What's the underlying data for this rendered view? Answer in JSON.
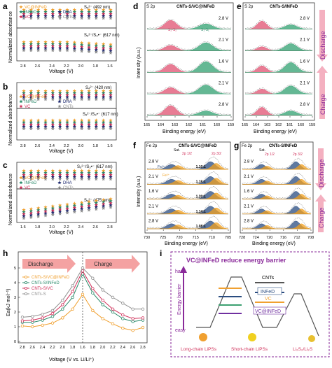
{
  "panel_labels": {
    "a": "a",
    "b": "b",
    "c": "c",
    "d": "d",
    "e": "e",
    "f": "f",
    "g": "g",
    "h": "h",
    "i": "i"
  },
  "colors": {
    "vc_infed": "#f0a030",
    "infed": "#2a8a6a",
    "vc": "#d0305a",
    "dha": "#1e2a70",
    "cnts": "#909090",
    "red_fill": "#e05070",
    "green_fill": "#30a070",
    "blue_fill": "#2a4c80",
    "orange_fill": "#f0a020",
    "arrow_pink": "#f4a2a2",
    "purple": "#8a2a9a"
  },
  "legend_series": [
    "VC@INFeD",
    "INFeD",
    "VC",
    "DHA",
    "CNTs"
  ],
  "panel_a": {
    "ylabel": "Normalized absorbance",
    "xlabel": "Voltage (V)",
    "top_label": "S₆²⁻ (492 nm)",
    "bottom_label": "S₆²⁻/S₃•⁻ (617 nm)",
    "xticks": [
      "2.8",
      "2.6",
      "2.4",
      "2.2",
      "2.0",
      "1.8",
      "1.6"
    ]
  },
  "panel_b": {
    "ylabel": "Normalized absorbance",
    "xlabel": "Voltage (V)",
    "top_label": "S₄²⁻ (420 nm)",
    "bottom_label": "S₆²⁻/S₃•⁻ (617 nm)",
    "xticks": [
      "2.8",
      "2.6",
      "2.4",
      "2.2",
      "2.0",
      "1.8",
      "1.6"
    ]
  },
  "panel_c": {
    "ylabel": "Normalized absorbance",
    "xlabel": "Voltage (V)",
    "top_label": "S₆²⁻/S₃•⁻ (617 nm)",
    "bottom_label": "S₆²⁻ (475 nm)",
    "xticks": [
      "1.6",
      "1.8",
      "2.0",
      "2.2",
      "2.4",
      "2.6",
      "2.8"
    ]
  },
  "panel_d": {
    "corner": "S 2p",
    "title": "CNTs-S/VC@INFeD",
    "xlabel": "Binding energy (eV)",
    "ylabel": "Intensity (a.u.)",
    "xticks": [
      "165",
      "164",
      "163",
      "162",
      "161",
      "160",
      "159"
    ],
    "voltages": [
      "2.8 V",
      "2.1 V",
      "1.6 V",
      "2.1 V",
      "2.8 V"
    ],
    "peak1": "S₂-S₂",
    "peak2": "S₁-S₁"
  },
  "panel_e": {
    "corner": "S 2p",
    "title": "CNTs-S/INFeD",
    "xlabel": "Binding energy (eV)",
    "xticks": [
      "165",
      "164",
      "163",
      "162",
      "161",
      "160",
      "159"
    ],
    "voltages": [
      "2.8 V",
      "2.1 V",
      "1.6 V",
      "2.1 V",
      "2.8 V"
    ],
    "discharge": "Discharge",
    "charge": "Charge"
  },
  "panel_f": {
    "corner": "Fe 2p",
    "title": "CNTs-S/VC@INFeD",
    "xlabel": "Binding energy (eV)",
    "ylabel": "Intensity (a.u.)",
    "xticks": [
      "730",
      "725",
      "720",
      "715",
      "710",
      "705"
    ],
    "voltages": [
      "2.8 V",
      "2.1 V",
      "1.6 V",
      "2.1 V",
      "2.8 V"
    ],
    "sat": "Sat.",
    "p12": "2p 1/2",
    "p32": "2p 3/2",
    "fe3": "Fe³⁺",
    "fe2": "Fe²⁺",
    "ratios": [
      "1.10",
      "1.15",
      "1.20",
      "1.14",
      "1.08"
    ]
  },
  "panel_g": {
    "corner": "Fe 2p",
    "title": "CNTs-S/INFeD",
    "xlabel": "Binding energy (eV)",
    "xticks": [
      "728",
      "724",
      "720",
      "716",
      "712",
      "708"
    ],
    "voltages": [
      "2.8 V",
      "2.1 V",
      "1.6 V",
      "2.1 V",
      "2.8 V"
    ],
    "sat": "Sat.",
    "p12": "2p 1/2",
    "p32": "2p 3/2",
    "discharge": "Discharge",
    "charge": "Charge"
  },
  "panel_h": {
    "ylabel": "Ea(kJ mol⁻¹)",
    "xlabel": "Voltage (V vs. Li/Li⁺)",
    "discharge": "Discharge",
    "charge": "Charge",
    "xticks": [
      "2.8",
      "2.6",
      "2.4",
      "2.2",
      "2.0",
      "1.8",
      "1.6",
      "1.8",
      "2.0",
      "2.2",
      "2.4",
      "2.6",
      "2.8"
    ],
    "yticks": [
      "0",
      "1",
      "2",
      "3",
      "4",
      "5"
    ],
    "legend": [
      "CNTs-S/VC@INFeD",
      "CNTs-S/INFeD",
      "CNTs-S/VC",
      "CNTs-S"
    ]
  },
  "chart_data": {
    "type": "line",
    "xlabel": "Voltage (V vs. Li/Li⁺)",
    "ylabel": "Ea(kJ mol⁻¹)",
    "categories": [
      "2.8",
      "2.6",
      "2.4",
      "2.2",
      "2.0",
      "1.8",
      "1.6",
      "1.8",
      "2.0",
      "2.2",
      "2.4",
      "2.6",
      "2.8"
    ],
    "ylim": [
      0,
      6
    ],
    "series": [
      {
        "name": "CNTs-S/VC@INFeD",
        "values": [
          1.05,
          1.0,
          1.1,
          1.25,
          1.6,
          2.2,
          3.2,
          2.1,
          1.55,
          1.2,
          0.9,
          0.75,
          0.95
        ]
      },
      {
        "name": "CNTs-S/INFeD",
        "values": [
          1.3,
          1.3,
          1.45,
          1.7,
          2.2,
          3.0,
          4.6,
          3.3,
          2.5,
          2.0,
          1.55,
          1.35,
          1.45
        ]
      },
      {
        "name": "CNTs-S/VC",
        "values": [
          1.4,
          1.45,
          1.6,
          1.9,
          2.5,
          3.4,
          4.8,
          3.6,
          2.8,
          2.2,
          1.8,
          1.55,
          1.6
        ]
      },
      {
        "name": "CNTs-S",
        "values": [
          1.65,
          1.7,
          1.85,
          2.1,
          2.8,
          3.8,
          5.0,
          4.3,
          3.5,
          3.0,
          2.6,
          2.2,
          2.2
        ]
      }
    ]
  },
  "panel_i": {
    "title": "VC@INFeD reduce energy barrier",
    "yaxis": "Energy barrier",
    "hard": "hard",
    "easy": "easy",
    "levels": [
      "CNTs",
      "INFeD",
      "VC",
      "VC@INFeD"
    ],
    "stage_labels": [
      "Long-chain LiPSs",
      "Short-chain LiPSs",
      "Li₂S₂/Li₂S"
    ]
  }
}
